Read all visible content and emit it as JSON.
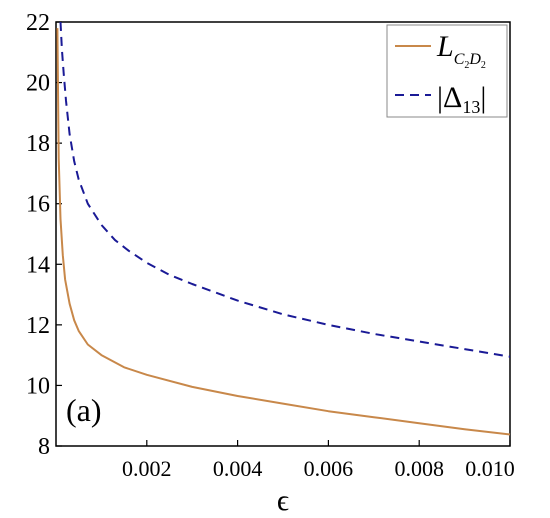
{
  "chart_data": {
    "type": "line",
    "title": "",
    "panel_label": "(a)",
    "xlabel": "ϵ",
    "ylabel": "",
    "xlim": [
      0,
      0.01
    ],
    "ylim": [
      8,
      22
    ],
    "xticks": [
      "0.002",
      "0.004",
      "0.006",
      "0.008",
      "0.010"
    ],
    "xtick_values": [
      0.002,
      0.004,
      0.006,
      0.008,
      0.01
    ],
    "yticks": [
      "8",
      "10",
      "12",
      "14",
      "16",
      "18",
      "20",
      "22"
    ],
    "ytick_values": [
      8,
      10,
      12,
      14,
      16,
      18,
      20,
      22
    ],
    "grid": false,
    "legend_position": "top-right",
    "series": [
      {
        "name": "L_{C₂D₂}",
        "legend": {
          "main": "L",
          "sub1": "C",
          "sub1b": "2",
          "sub2": "D",
          "sub2b": "2"
        },
        "color": "#c8884a",
        "dash": "solid",
        "x": [
          3e-05,
          6e-05,
          0.0001,
          0.00015,
          0.0002,
          0.0003,
          0.0004,
          0.0005,
          0.0007,
          0.001,
          0.0015,
          0.002,
          0.003,
          0.004,
          0.005,
          0.006,
          0.007,
          0.008,
          0.009,
          0.01
        ],
        "y": [
          21.8,
          17.5,
          15.5,
          14.3,
          13.5,
          12.7,
          12.15,
          11.8,
          11.35,
          11.0,
          10.6,
          10.35,
          9.95,
          9.65,
          9.4,
          9.15,
          8.95,
          8.75,
          8.55,
          8.38
        ]
      },
      {
        "name": "|Δ13|",
        "legend": {
          "main": "|Δ",
          "sub": "13",
          "end": "|"
        },
        "color": "#1a1a96",
        "dash": "dashed",
        "x": [
          0.0001,
          0.00013,
          0.00017,
          0.00022,
          0.0003,
          0.0004,
          0.0005,
          0.0007,
          0.001,
          0.0013,
          0.0016,
          0.002,
          0.0025,
          0.003,
          0.004,
          0.005,
          0.006,
          0.007,
          0.008,
          0.009,
          0.01
        ],
        "y": [
          22.0,
          21.1,
          20.3,
          19.4,
          18.3,
          17.4,
          16.8,
          16.0,
          15.3,
          14.8,
          14.45,
          14.05,
          13.65,
          13.35,
          12.8,
          12.35,
          12.0,
          11.7,
          11.45,
          11.2,
          10.95
        ]
      }
    ]
  }
}
